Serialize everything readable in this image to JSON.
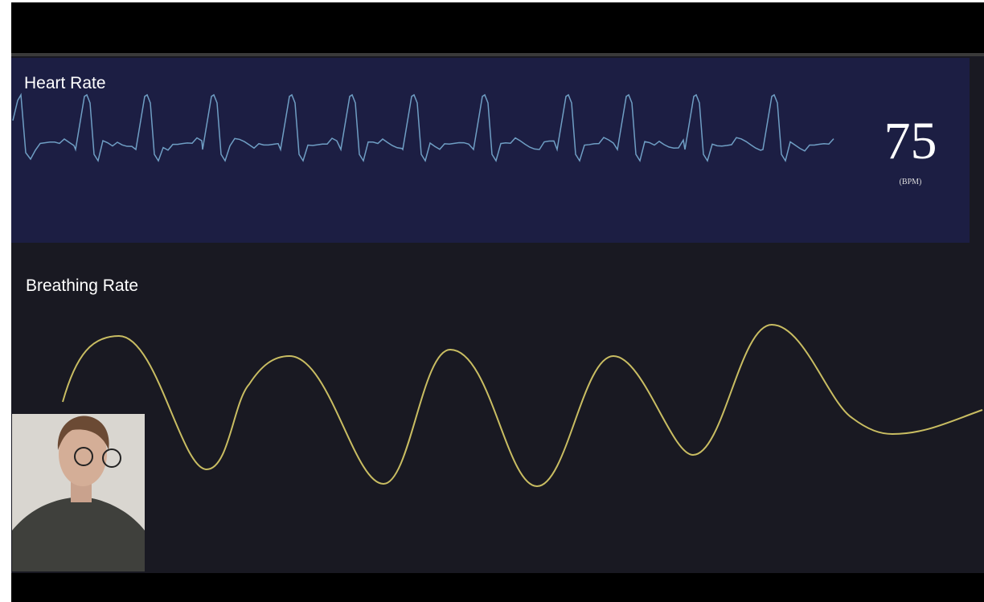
{
  "heart_rate": {
    "label": "Heart Rate",
    "value": "75",
    "unit": "(BPM)"
  },
  "breathing_rate": {
    "label": "Breathing Rate"
  }
}
